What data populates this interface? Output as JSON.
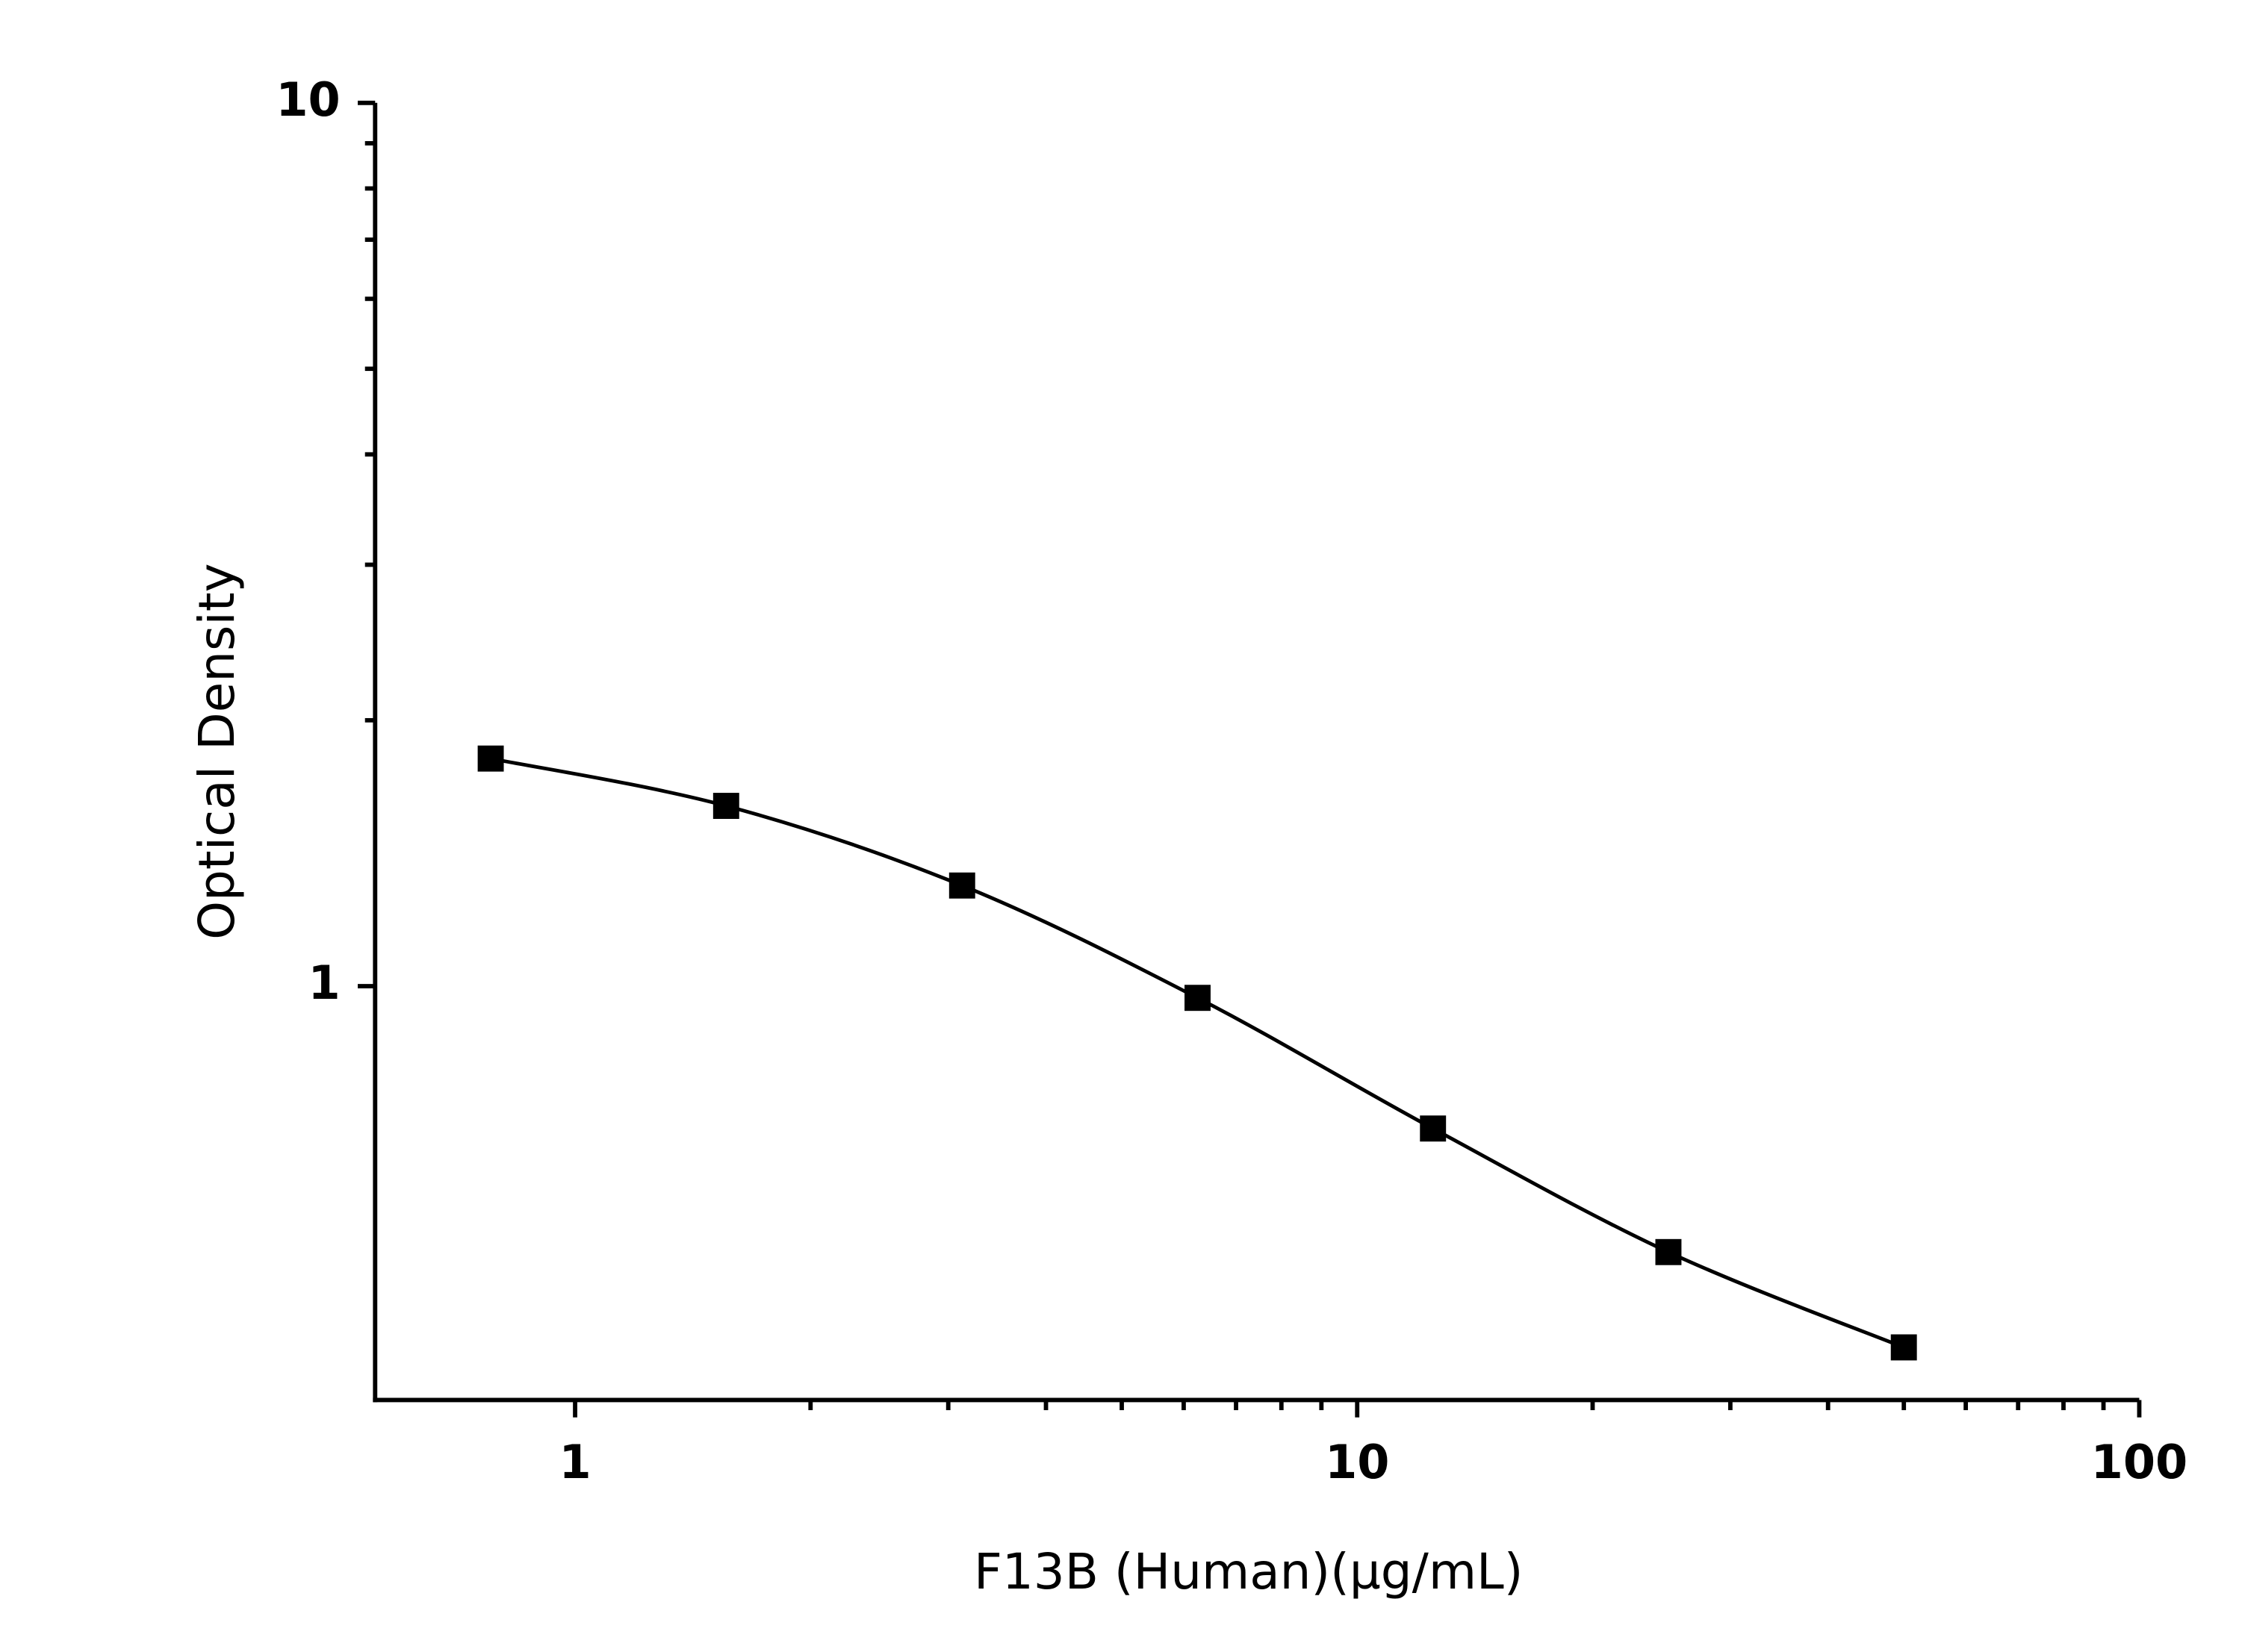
{
  "chart_data": {
    "type": "line",
    "x_label": "F13B (Human)(µg/mL)",
    "y_label": "Optical Density",
    "x_log": true,
    "y_log": true,
    "xlim": [
      0.555,
      100
    ],
    "ylim": [
      0.34,
      10
    ],
    "xticks": [
      1,
      10,
      100
    ],
    "yticks": [
      1,
      10
    ],
    "xminorticks": [
      2,
      3,
      4,
      5,
      6,
      7,
      8,
      9,
      20,
      30,
      40,
      50,
      60,
      70,
      80,
      90
    ],
    "yminorticks": [
      2,
      3,
      4,
      5,
      6,
      7,
      8,
      9
    ],
    "series": [
      {
        "color": "#000000",
        "marker": "square",
        "x": [
          0.78,
          1.56,
          3.125,
          6.25,
          12.5,
          25,
          50
        ],
        "values": [
          1.81,
          1.6,
          1.3,
          0.97,
          0.69,
          0.5,
          0.39
        ]
      }
    ]
  }
}
